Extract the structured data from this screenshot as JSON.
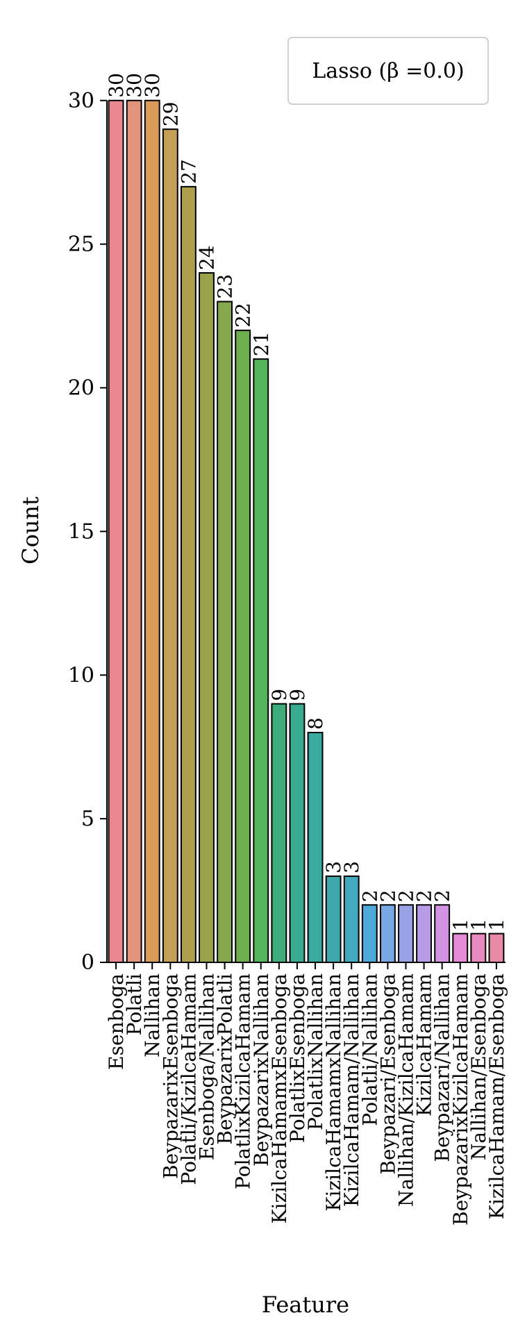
{
  "chart_data": {
    "type": "bar",
    "xlabel": "Feature",
    "ylabel": "Count",
    "ylim": [
      0,
      32
    ],
    "yticks": [
      0,
      5,
      10,
      15,
      20,
      25,
      30
    ],
    "legend": {
      "label": "Lasso (β =0.0)",
      "placement": "top-right"
    },
    "grid": false,
    "categories": [
      "Esenboga",
      "Polatli",
      "Nallihan",
      "BeypazarixEsenboga",
      "Polatli/KizilcaHamam",
      "Esenboga/Nallihan",
      "BeypazarixPolatli",
      "PolatlixKizilcaHamam",
      "BeypazarixNallihan",
      "KizilcaHamamxEsenboga",
      "PolatlixEsenboga",
      "PolatlixNallihan",
      "KizilcaHamamxNallihan",
      "KizilcaHamam/Nallihan",
      "Polatli/Nallihan",
      "Beypazari/Esenboga",
      "Nallihan/KizilcaHamam",
      "KizilcaHamam",
      "Beypazari/Nallihan",
      "BeypazarixKizilcaHamam",
      "Nallihan/Esenboga",
      "KizilcaHamam/Esenboga"
    ],
    "values": [
      30,
      30,
      30,
      29,
      27,
      24,
      23,
      22,
      21,
      9,
      9,
      8,
      3,
      3,
      2,
      2,
      2,
      2,
      2,
      1,
      1,
      1
    ],
    "colors": [
      "#e8878d",
      "#e2937c",
      "#d99a5a",
      "#c49f55",
      "#ad9f4c",
      "#9ca24a",
      "#86a84c",
      "#6fae4e",
      "#55b35c",
      "#3fad7a",
      "#3aab90",
      "#3aa99e",
      "#3fa8aa",
      "#43a9bd",
      "#4ea8d9",
      "#79a7e2",
      "#9aa2e6",
      "#b89be6",
      "#d293e3",
      "#e48ad6",
      "#e889bf",
      "#e889a8"
    ]
  }
}
